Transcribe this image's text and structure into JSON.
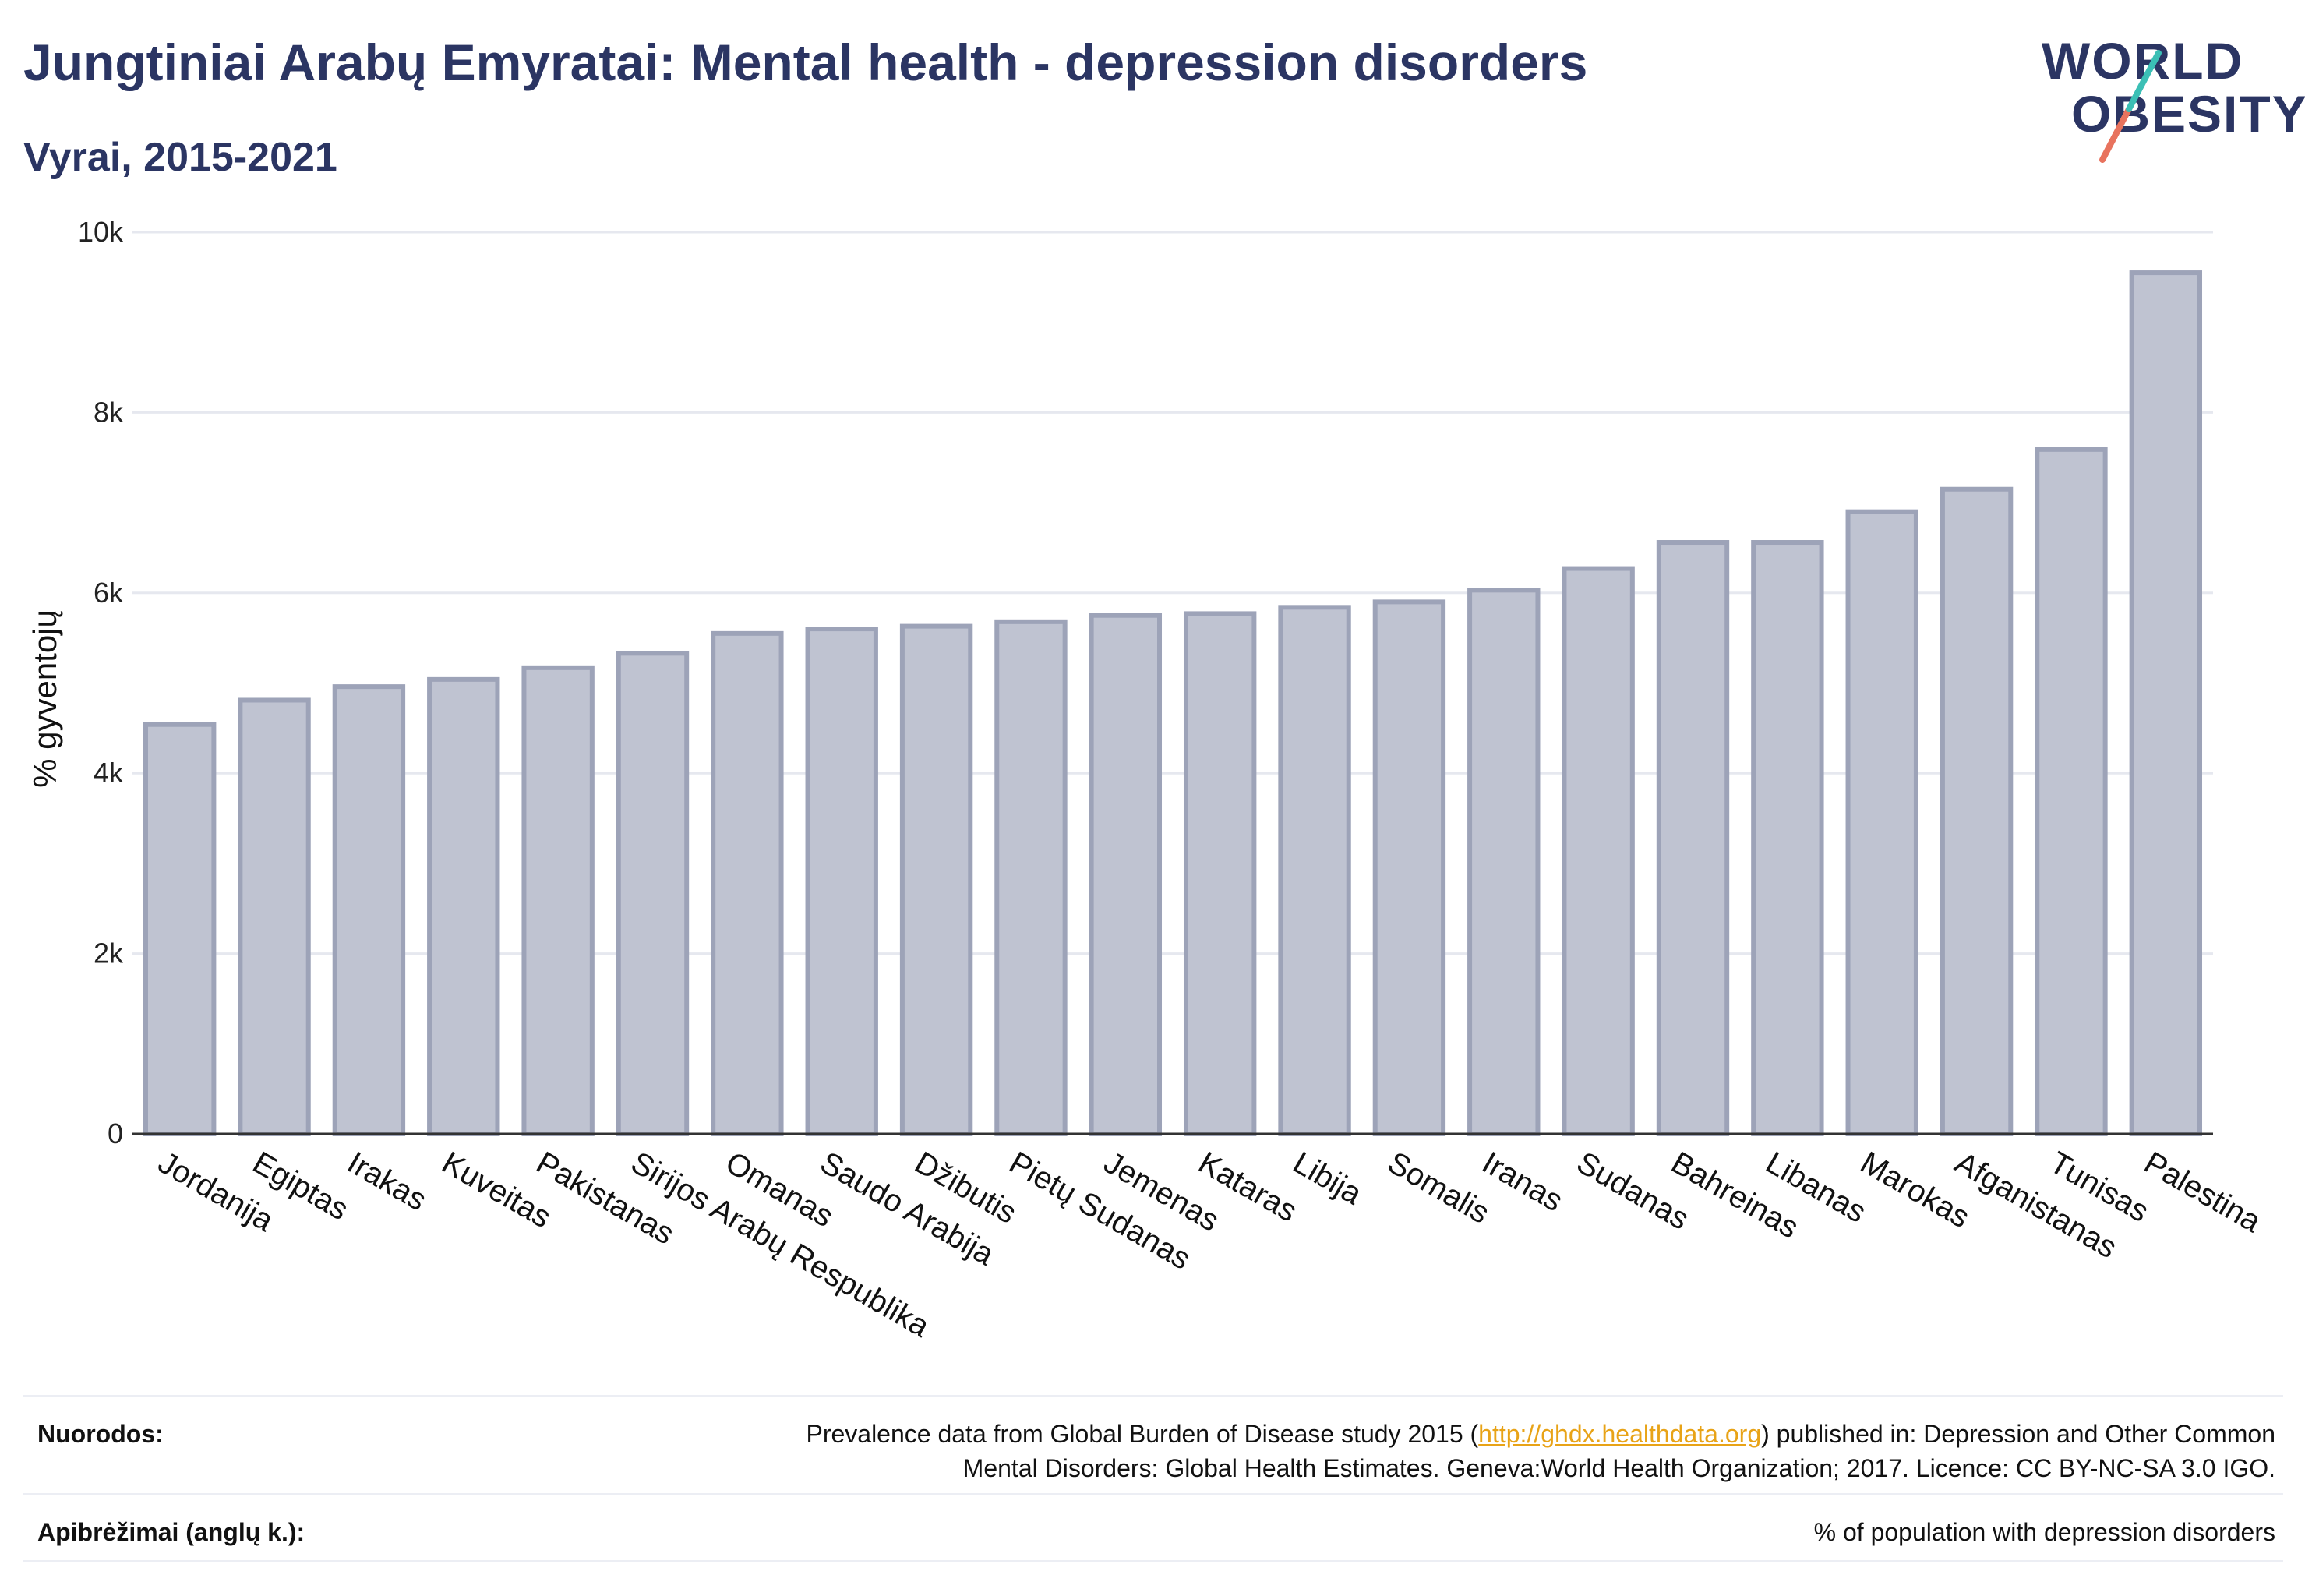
{
  "header": {
    "title": "Jungtiniai Arabų Emyratai: Mental health - depression disorders",
    "subtitle": "Vyrai, 2015-2021"
  },
  "logo": {
    "line1": "WORLD",
    "line2": "OBESITY",
    "accent_teal": "#3bbfb5",
    "accent_coral": "#e8735e"
  },
  "colors": {
    "bar_fill": "#bfc3d1",
    "bar_stroke": "#9da3b8",
    "title": "#2b3563",
    "link": "#e8a317"
  },
  "chart_data": {
    "type": "bar",
    "ylabel": "% gyventojų",
    "ylim": [
      0,
      10000
    ],
    "yticks": [
      0,
      2000,
      4000,
      6000,
      8000,
      10000
    ],
    "ytick_labels": [
      "0",
      "2k",
      "4k",
      "6k",
      "8k",
      "10k"
    ],
    "grid": true,
    "categories": [
      "Jordanija",
      "Egiptas",
      "Irakas",
      "Kuveitas",
      "Pakistanas",
      "Sirijos Arabų Respublika",
      "Omanas",
      "Saudo Arabija",
      "Džibutis",
      "Pietų Sudanas",
      "Jemenas",
      "Kataras",
      "Libija",
      "Somalis",
      "Iranas",
      "Sudanas",
      "Bahreinas",
      "Libanas",
      "Marokas",
      "Afganistanas",
      "Tunisas",
      "Palestina"
    ],
    "values": [
      4540,
      4810,
      4960,
      5040,
      5170,
      5330,
      5550,
      5600,
      5630,
      5680,
      5750,
      5770,
      5840,
      5900,
      6030,
      6270,
      6560,
      6560,
      6900,
      7150,
      7590,
      9550
    ]
  },
  "footer": {
    "refs_label": "Nuorodos:",
    "refs_text_before": "Prevalence data from Global Burden of Disease study 2015 (",
    "refs_link": "http://ghdx.healthdata.org",
    "refs_text_after": ") published in: Depression and Other Common",
    "refs_line2": "Mental Disorders: Global Health Estimates. Geneva:World Health Organization; 2017. Licence: CC BY-NC-SA 3.0 IGO.",
    "defs_label": "Apibrėžimai (anglų k.):",
    "defs_text": "% of population with depression disorders"
  }
}
